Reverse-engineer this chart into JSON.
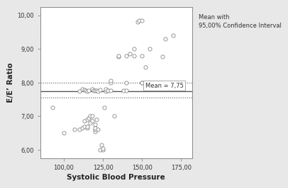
{
  "scatter_x": [
    93,
    100,
    107,
    110,
    110,
    112,
    112,
    113,
    113,
    113,
    114,
    115,
    115,
    115,
    115,
    116,
    116,
    117,
    117,
    118,
    118,
    118,
    119,
    120,
    120,
    120,
    120,
    120,
    121,
    121,
    122,
    122,
    123,
    123,
    124,
    125,
    125,
    126,
    127,
    127,
    128,
    128,
    130,
    130,
    130,
    132,
    135,
    135,
    138,
    140,
    140,
    140,
    142,
    145,
    145,
    147,
    148,
    150,
    150,
    150,
    150,
    152,
    155,
    155,
    160,
    163,
    165,
    170,
    172
  ],
  "scatter_y": [
    7.25,
    6.5,
    6.6,
    6.6,
    7.75,
    7.8,
    6.65,
    6.7,
    6.85,
    7.78,
    7.77,
    6.65,
    6.7,
    6.9,
    7.75,
    7.77,
    6.95,
    7.0,
    6.8,
    7.0,
    6.85,
    7.8,
    7.77,
    6.55,
    6.6,
    6.65,
    6.75,
    7.76,
    7.77,
    6.9,
    6.6,
    7.75,
    7.78,
    6.0,
    6.15,
    6.0,
    6.05,
    7.25,
    7.75,
    7.8,
    7.76,
    7.77,
    7.77,
    8.0,
    8.05,
    7.0,
    8.78,
    8.8,
    7.77,
    7.77,
    8.0,
    8.8,
    8.85,
    8.8,
    9.0,
    9.8,
    9.85,
    8.8,
    9.85,
    8.0,
    8.0,
    8.45,
    9.0,
    8.0,
    8.0,
    8.78,
    9.3,
    9.4,
    8.0
  ],
  "mean": 7.75,
  "ci_upper": 8.0,
  "ci_lower": 7.55,
  "xlim": [
    85,
    182
  ],
  "ylim": [
    5.75,
    10.25
  ],
  "xticks": [
    100.0,
    125.0,
    150.0,
    175.0
  ],
  "yticks": [
    6.0,
    7.0,
    8.0,
    9.0,
    10.0
  ],
  "xlabel": "Systolic Blood Pressure",
  "ylabel": "E/E’ Ratio",
  "legend_text": "Mean with\n95,00% Confidence Interval",
  "mean_label": "Mean = 7,75",
  "scatter_facecolor": "white",
  "scatter_edgecolor": "#888888",
  "line_color": "#555555",
  "bg_color": "#e8e8e8",
  "plot_bg_color": "white"
}
